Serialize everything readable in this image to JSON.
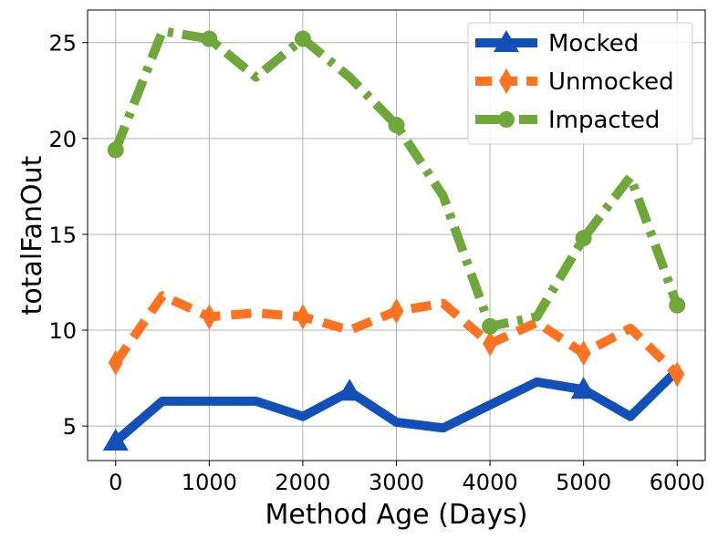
{
  "chart_data": {
    "type": "line",
    "title": "",
    "xlabel": "Method Age (Days)",
    "ylabel": "totalFanOut",
    "x": [
      0,
      500,
      1000,
      1500,
      2000,
      2500,
      3000,
      3500,
      4000,
      4500,
      5000,
      5500,
      6000
    ],
    "xlim": [
      -300,
      6300
    ],
    "ylim": [
      3.2,
      26.7
    ],
    "xticks": [
      0,
      1000,
      2000,
      3000,
      4000,
      5000,
      6000
    ],
    "yticks": [
      5,
      10,
      15,
      20,
      25
    ],
    "grid": true,
    "legend_position": "top-right",
    "series": [
      {
        "name": "Mocked",
        "color": "#1150b8",
        "dash": "solid",
        "marker": "triangle",
        "values": [
          4.2,
          6.3,
          6.3,
          6.3,
          5.5,
          6.8,
          5.2,
          4.9,
          6.1,
          7.3,
          6.9,
          5.5,
          7.9
        ]
      },
      {
        "name": "Unmocked",
        "color": "#ff7320",
        "dash": "dashed",
        "marker": "diamond",
        "values": [
          8.3,
          11.8,
          10.7,
          10.9,
          10.7,
          10.0,
          11.0,
          11.4,
          9.3,
          10.4,
          8.8,
          10.1,
          7.7
        ]
      },
      {
        "name": "Impacted",
        "color": "#6fa83a",
        "dash": "dashdot",
        "marker": "circle",
        "values": [
          19.4,
          25.6,
          25.2,
          23.2,
          25.2,
          23.2,
          20.7,
          17.0,
          10.2,
          10.7,
          14.8,
          18.0,
          11.3
        ]
      }
    ]
  }
}
